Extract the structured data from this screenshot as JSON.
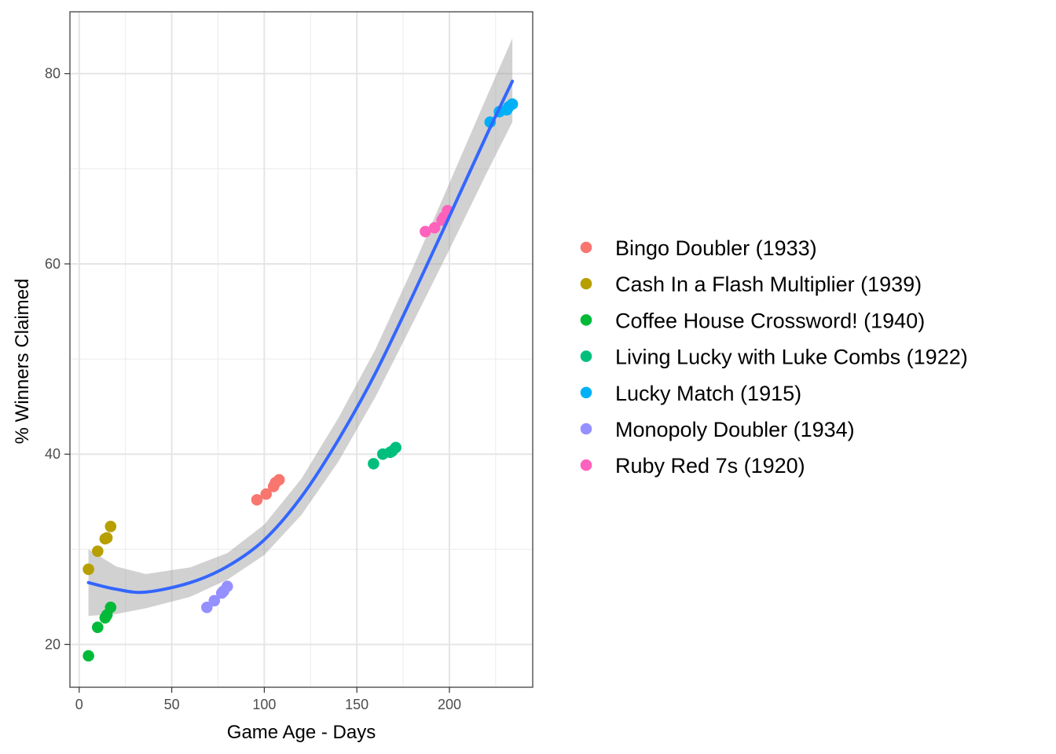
{
  "chart_data": {
    "type": "scatter",
    "xlabel": "Game Age - Days",
    "ylabel": "% Winners Claimed",
    "xlim": [
      -5,
      245
    ],
    "ylim": [
      15.5,
      86.5
    ],
    "x_ticks": [
      0,
      50,
      100,
      150,
      200
    ],
    "x_tick_labels": [
      "0",
      "50",
      "100",
      "150",
      "200"
    ],
    "y_ticks": [
      20,
      40,
      60,
      80
    ],
    "y_tick_labels": [
      "20",
      "40",
      "60",
      "80"
    ],
    "grid": true,
    "legend_position": "right",
    "series": [
      {
        "name": "Bingo Doubler (1933)",
        "color": "#F8766D",
        "points": [
          [
            96,
            35.2
          ],
          [
            101,
            35.8
          ],
          [
            105,
            36.6
          ],
          [
            106,
            37.0
          ],
          [
            108,
            37.3
          ]
        ]
      },
      {
        "name": "Cash In a Flash Multiplier (1939)",
        "color": "#B79F00",
        "points": [
          [
            5,
            27.9
          ],
          [
            10,
            29.8
          ],
          [
            14,
            31.1
          ],
          [
            15,
            31.2
          ],
          [
            17,
            32.4
          ]
        ]
      },
      {
        "name": "Coffee House Crossword! (1940)",
        "color": "#00BA38",
        "points": [
          [
            5,
            18.8
          ],
          [
            10,
            21.8
          ],
          [
            14,
            22.8
          ],
          [
            15,
            23.1
          ],
          [
            17,
            23.9
          ]
        ]
      },
      {
        "name": "Living Lucky with Luke Combs (1922)",
        "color": "#00BF7D",
        "points": [
          [
            159,
            39.0
          ],
          [
            164,
            40.0
          ],
          [
            168,
            40.2
          ],
          [
            169,
            40.3
          ],
          [
            171,
            40.7
          ]
        ]
      },
      {
        "name": "Lucky Match (1915)",
        "color": "#00B0F6",
        "points": [
          [
            222,
            74.9
          ],
          [
            227,
            76.0
          ],
          [
            231,
            76.2
          ],
          [
            232,
            76.5
          ],
          [
            234,
            76.8
          ]
        ]
      },
      {
        "name": "Monopoly Doubler (1934)",
        "color": "#9590FF",
        "points": [
          [
            69,
            23.9
          ],
          [
            73,
            24.6
          ],
          [
            77,
            25.4
          ],
          [
            78,
            25.6
          ],
          [
            80,
            26.1
          ]
        ]
      },
      {
        "name": "Ruby Red 7s (1920)",
        "color": "#FF62BC",
        "points": [
          [
            187,
            63.4
          ],
          [
            192,
            63.8
          ],
          [
            196,
            64.6
          ],
          [
            197,
            64.9
          ],
          [
            199,
            65.6
          ]
        ]
      }
    ],
    "smooth": {
      "color": "#3366FF",
      "band_color": "#999999",
      "x": [
        5,
        20,
        36,
        60,
        80,
        100,
        120,
        140,
        160,
        180,
        200,
        220,
        234
      ],
      "y": [
        26.5,
        25.8,
        25.5,
        26.5,
        28.2,
        31.0,
        35.5,
        41.5,
        48.5,
        56.6,
        65.0,
        73.5,
        79.2
      ],
      "lower": [
        23.0,
        23.2,
        23.8,
        25.0,
        26.8,
        29.4,
        33.6,
        39.2,
        46.0,
        53.7,
        61.5,
        69.5,
        74.9
      ],
      "upper": [
        30.0,
        28.2,
        27.4,
        28.1,
        29.6,
        32.6,
        37.4,
        43.8,
        51.0,
        59.5,
        68.5,
        77.5,
        83.7
      ]
    }
  }
}
